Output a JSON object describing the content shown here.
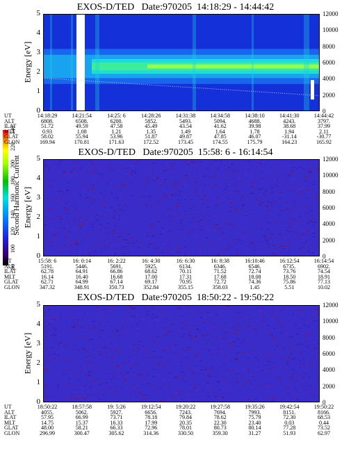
{
  "chart_data": [
    {
      "type": "heatmap",
      "title": "EXOS-D/TED   Date:970205  14:18:29 - 14:44:42",
      "ylabel": "Energy [eV]",
      "y2label": "Temperature [K]",
      "ylim": [
        0,
        5
      ],
      "y2lim": [
        0,
        12000
      ],
      "yticks": [
        0,
        1,
        2,
        3,
        4,
        5
      ],
      "y2ticks": [
        0,
        2000,
        4000,
        6000,
        8000,
        10000,
        12000
      ],
      "band_center_ev": 2.3,
      "table_labels": [
        "UT",
        "ALT",
        "ILAT",
        "MLT",
        "GLAT",
        "GLON"
      ],
      "table": [
        [
          "14:18:29",
          "6808.",
          "51.72",
          "0.93",
          "58.02",
          "169.94"
        ],
        [
          "14:21:54",
          "6508.",
          "49.59",
          "1.08",
          "55.94",
          "170.81"
        ],
        [
          "14:25: 6",
          "6200.",
          "47.58",
          "1.21",
          "53.96",
          "171.63"
        ],
        [
          "14:28:26",
          "5852.",
          "45.49",
          "1.35",
          "51.87",
          "172.52"
        ],
        [
          "14:31:38",
          "5493.",
          "43.54",
          "1.49",
          "49.87",
          "173.45"
        ],
        [
          "14:34:58",
          "5094.",
          "41.62",
          "1.64",
          "47.85",
          "174.55"
        ],
        [
          "14:38:10",
          "4688.",
          "39.98",
          "1.78",
          "46.07",
          "175.79"
        ],
        [
          "14:41:30",
          "4243.",
          "38.68",
          "1.94",
          "-31.14",
          "164.23"
        ],
        [
          "14:44:42",
          "3797.",
          "37.99",
          "2.11",
          "-30.77",
          "165.92"
        ]
      ]
    },
    {
      "type": "heatmap",
      "title": "EXOS-D/TED   Date:970205  15:58: 6 - 16:14:54",
      "ylabel": "Energy [eV]",
      "y2label": "Temperature [K]",
      "colorbar_label": "Second Harmonic Current",
      "colorbar_ticks": [
        80,
        100,
        120,
        140,
        160,
        180,
        200,
        220,
        240
      ],
      "ylim": [
        0,
        5
      ],
      "y2lim": [
        0,
        12000
      ],
      "yticks": [
        0,
        1,
        2,
        3,
        4,
        5
      ],
      "y2ticks": [
        0,
        2000,
        4000,
        6000,
        8000,
        10000,
        12000
      ],
      "table_labels": [
        "UT",
        "ALT",
        "ILAT",
        "MLT",
        "GLAT",
        "GLON"
      ],
      "table": [
        [
          "15:58: 6",
          "5191.",
          "62.78",
          "16.14",
          "62.71",
          "347.32"
        ],
        [
          "16: 0:14",
          "5446.",
          "64.91",
          "16.40",
          "64.99",
          "348.91"
        ],
        [
          "16: 2:22",
          "5691.",
          "66.86",
          "16.68",
          "67.14",
          "350.73"
        ],
        [
          "16: 4:30",
          "5925.",
          "68.62",
          "17.00",
          "69.17",
          "352.84"
        ],
        [
          "16: 6:30",
          "6134.",
          "70.11",
          "17.31",
          "70.95",
          "355.15"
        ],
        [
          "16: 8:38",
          "6346.",
          "71.52",
          "17.68",
          "72.72",
          "358.03"
        ],
        [
          "16:10:46",
          "6546.",
          "72.74",
          "18.08",
          "74.36",
          "1.45"
        ],
        [
          "16:12:54",
          "6735.",
          "73.76",
          "18.50",
          "75.86",
          "5.51"
        ],
        [
          "16:14:54",
          "6902.",
          "74.54",
          "18.91",
          "77.13",
          "10.02"
        ]
      ]
    },
    {
      "type": "heatmap",
      "title": "EXOS-D/TED   Date:970205  18:50:22 - 19:50:22",
      "ylabel": "Energy [eV]",
      "y2label": "Temperature [K]",
      "ylim": [
        0,
        5
      ],
      "y2lim": [
        0,
        12000
      ],
      "yticks": [
        0,
        1,
        2,
        3,
        4,
        5
      ],
      "y2ticks": [
        0,
        2000,
        4000,
        6000,
        8000,
        10000,
        12000
      ],
      "table_labels": [
        "UT",
        "ALT",
        "ILAT",
        "MLT",
        "GLAT",
        "GLON"
      ],
      "table": [
        [
          "18:50:22",
          "4055.",
          "57.95",
          "14.75",
          "48.00",
          "296.99"
        ],
        [
          "18:57:58",
          "5062.",
          "66.99",
          "15.37",
          "58.21",
          "300.47"
        ],
        [
          "19: 5:26",
          "5927.",
          "73.71",
          "16.33",
          "66.33",
          "305.62"
        ],
        [
          "19:12:54",
          "6656.",
          "78.18",
          "17.99",
          "72.96",
          "314.36"
        ],
        [
          "19:20:22",
          "7243.",
          "79.84",
          "20.35",
          "78.01",
          "330.50"
        ],
        [
          "19:27:58",
          "7694.",
          "78.62",
          "22.30",
          "80.73",
          "359.30"
        ],
        [
          "19:35:26",
          "7993.",
          "75.79",
          "23.40",
          "80.14",
          "31.27"
        ],
        [
          "19:42:54",
          "8151.",
          "72.30",
          "0.03",
          "77.28",
          "51.93"
        ],
        [
          "19:50:22",
          "8166.",
          "68.53",
          "0.44",
          "73.52",
          "62.97"
        ]
      ]
    }
  ]
}
